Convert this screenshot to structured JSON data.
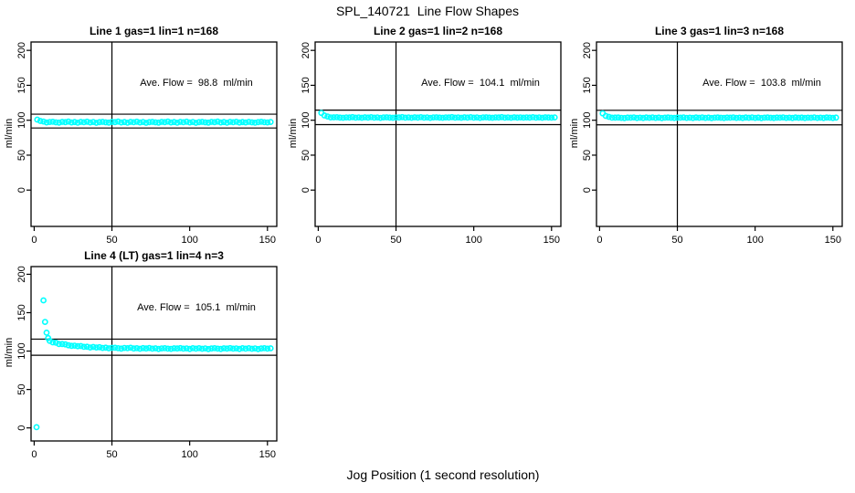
{
  "title": "SPL_140721  Line Flow Shapes",
  "xlabel": "Jog Position (1 second resolution)",
  "colors": {
    "points": "#00ffff",
    "axis": "#000000",
    "background": "#ffffff"
  },
  "chart_data": {
    "type": "scatter",
    "title": "SPL_140721  Line Flow Shapes",
    "xlabel": "Jog Position (1 second resolution)",
    "ylabel": "ml/min",
    "x_ticks": [
      0,
      50,
      100,
      150
    ],
    "y_ticks": [
      0,
      50,
      100,
      150,
      200
    ],
    "xlim": [
      -2,
      156
    ],
    "ylim_top_row": [
      -52,
      212
    ],
    "ylim_bottom_row": [
      -17,
      210
    ],
    "grid": false,
    "legend": "none",
    "x_common": [
      2,
      4,
      6,
      8,
      10,
      12,
      14,
      16,
      18,
      20,
      22,
      24,
      26,
      28,
      30,
      32,
      34,
      36,
      38,
      40,
      42,
      44,
      46,
      48,
      50,
      52,
      54,
      56,
      58,
      60,
      62,
      64,
      66,
      68,
      70,
      72,
      74,
      76,
      78,
      80,
      82,
      84,
      86,
      88,
      90,
      92,
      94,
      96,
      98,
      100,
      102,
      104,
      106,
      108,
      110,
      112,
      114,
      116,
      118,
      120,
      122,
      124,
      126,
      128,
      130,
      132,
      134,
      136,
      138,
      140,
      142,
      144,
      146,
      148,
      150,
      152
    ],
    "panels": [
      {
        "title": "Line 1 gas=1 lin=1 n=168",
        "annotation": "Ave. Flow =  98.8  ml/min",
        "ave_flow": 98.8,
        "n": 168,
        "ref_line_upper": 108.7,
        "ref_line_lower": 88.9,
        "vline": 50,
        "y": [
          100.9,
          98.9,
          98.2,
          96.9,
          97.5,
          97.8,
          97.0,
          96.6,
          97.6,
          97.2,
          98.0,
          96.9,
          97.4,
          96.5,
          97.7,
          97.1,
          97.9,
          96.8,
          97.5,
          96.4,
          97.3,
          97.7,
          97.0,
          96.6,
          97.6,
          97.2,
          98.0,
          96.9,
          97.4,
          96.5,
          97.7,
          97.1,
          97.9,
          96.8,
          97.5,
          96.4,
          97.3,
          97.7,
          97.0,
          96.6,
          97.6,
          97.2,
          98.0,
          96.9,
          97.4,
          96.5,
          97.7,
          97.1,
          97.9,
          96.8,
          97.5,
          96.4,
          97.3,
          97.7,
          97.0,
          96.6,
          97.6,
          97.2,
          98.0,
          96.9,
          97.4,
          96.5,
          97.7,
          97.1,
          97.8,
          96.7,
          97.4,
          96.9,
          97.6,
          97.0,
          96.5,
          97.3,
          97.8,
          97.1,
          96.8,
          97.5
        ]
      },
      {
        "title": "Line 2 gas=1 lin=2 n=168",
        "annotation": "Ave. Flow =  104.1  ml/min",
        "ave_flow": 104.1,
        "n": 168,
        "ref_line_upper": 114.5,
        "ref_line_lower": 93.7,
        "vline": 50,
        "y": [
          110.5,
          106.8,
          105.3,
          104.0,
          104.2,
          104.3,
          103.8,
          103.5,
          104.1,
          103.9,
          104.4,
          103.7,
          104.0,
          103.5,
          104.2,
          103.8,
          104.3,
          103.7,
          104.1,
          103.4,
          104.0,
          104.2,
          103.8,
          103.5,
          104.1,
          103.9,
          104.4,
          103.7,
          104.0,
          103.5,
          104.2,
          103.8,
          104.3,
          103.7,
          104.1,
          103.4,
          104.0,
          104.2,
          103.8,
          103.5,
          104.1,
          103.9,
          104.4,
          103.7,
          104.0,
          103.5,
          104.2,
          103.8,
          104.3,
          103.7,
          104.1,
          103.4,
          104.0,
          104.2,
          103.8,
          103.5,
          104.1,
          103.9,
          104.4,
          103.7,
          104.0,
          103.5,
          104.2,
          103.8,
          104.1,
          103.6,
          104.0,
          103.8,
          104.3,
          103.7,
          104.0,
          103.5,
          104.2,
          103.9,
          103.6,
          104.1
        ]
      },
      {
        "title": "Line 3 gas=1 lin=3 n=168",
        "annotation": "Ave. Flow =  103.8  ml/min",
        "ave_flow": 103.8,
        "n": 168,
        "ref_line_upper": 114.2,
        "ref_line_lower": 93.4,
        "vline": 50,
        "y": [
          109.8,
          106.2,
          104.8,
          103.6,
          103.8,
          103.9,
          103.4,
          103.1,
          103.8,
          103.6,
          104.1,
          103.3,
          103.7,
          103.2,
          103.9,
          103.5,
          104.0,
          103.4,
          103.8,
          103.1,
          103.7,
          103.9,
          103.5,
          103.2,
          103.8,
          103.6,
          104.1,
          103.4,
          103.7,
          103.2,
          103.9,
          103.5,
          104.0,
          103.4,
          103.8,
          103.1,
          103.7,
          103.9,
          103.5,
          103.2,
          103.8,
          103.6,
          104.1,
          103.4,
          103.7,
          103.2,
          103.9,
          103.5,
          104.0,
          103.4,
          103.8,
          103.1,
          103.7,
          103.9,
          103.5,
          103.2,
          103.8,
          103.6,
          104.1,
          103.4,
          103.7,
          103.2,
          103.9,
          103.5,
          103.8,
          103.3,
          103.7,
          103.5,
          104.0,
          103.4,
          103.7,
          103.2,
          103.9,
          103.6,
          103.3,
          103.8
        ]
      },
      {
        "title": "Line 4 (LT) gas=1 lin=4 n=3",
        "annotation": "Ave. Flow =  105.1  ml/min",
        "ave_flow": 105.1,
        "n": 3,
        "ref_line_upper": 115.6,
        "ref_line_lower": 94.6,
        "vline": 50,
        "x": [
          1.5,
          6,
          7,
          8,
          9,
          10,
          12,
          14,
          16,
          18,
          20,
          22,
          24,
          26,
          28,
          30,
          32,
          34,
          36,
          38,
          40,
          42,
          44,
          46,
          48,
          50,
          52,
          54,
          56,
          58,
          60,
          62,
          64,
          66,
          68,
          70,
          72,
          74,
          76,
          78,
          80,
          82,
          84,
          86,
          88,
          90,
          92,
          94,
          96,
          98,
          100,
          102,
          104,
          106,
          108,
          110,
          112,
          114,
          116,
          118,
          120,
          122,
          124,
          126,
          128,
          130,
          132,
          134,
          136,
          138,
          140,
          142,
          144,
          146,
          148,
          150,
          152
        ],
        "y": [
          1,
          166,
          138,
          124,
          117,
          113.3,
          111.4,
          110.9,
          109.2,
          109.2,
          108.8,
          107.6,
          106.8,
          107.1,
          106.4,
          106.6,
          105.5,
          105.6,
          104.7,
          105.4,
          104.7,
          105.1,
          104.1,
          104.5,
          103.6,
          104.2,
          104.4,
          103.7,
          103.3,
          104.1,
          103.7,
          104.3,
          103.4,
          103.7,
          103.0,
          103.9,
          103.4,
          104.0,
          103.2,
          103.6,
          102.8,
          103.5,
          103.7,
          103.2,
          102.9,
          103.6,
          103.4,
          103.9,
          103.1,
          103.5,
          102.8,
          103.7,
          103.2,
          103.8,
          103.0,
          103.5,
          102.7,
          103.4,
          103.7,
          103.1,
          102.8,
          103.6,
          103.3,
          103.9,
          103.1,
          103.5,
          102.8,
          103.7,
          103.2,
          103.8,
          103.0,
          103.5,
          102.7,
          103.4,
          103.7,
          103.1,
          103.6
        ]
      }
    ]
  }
}
